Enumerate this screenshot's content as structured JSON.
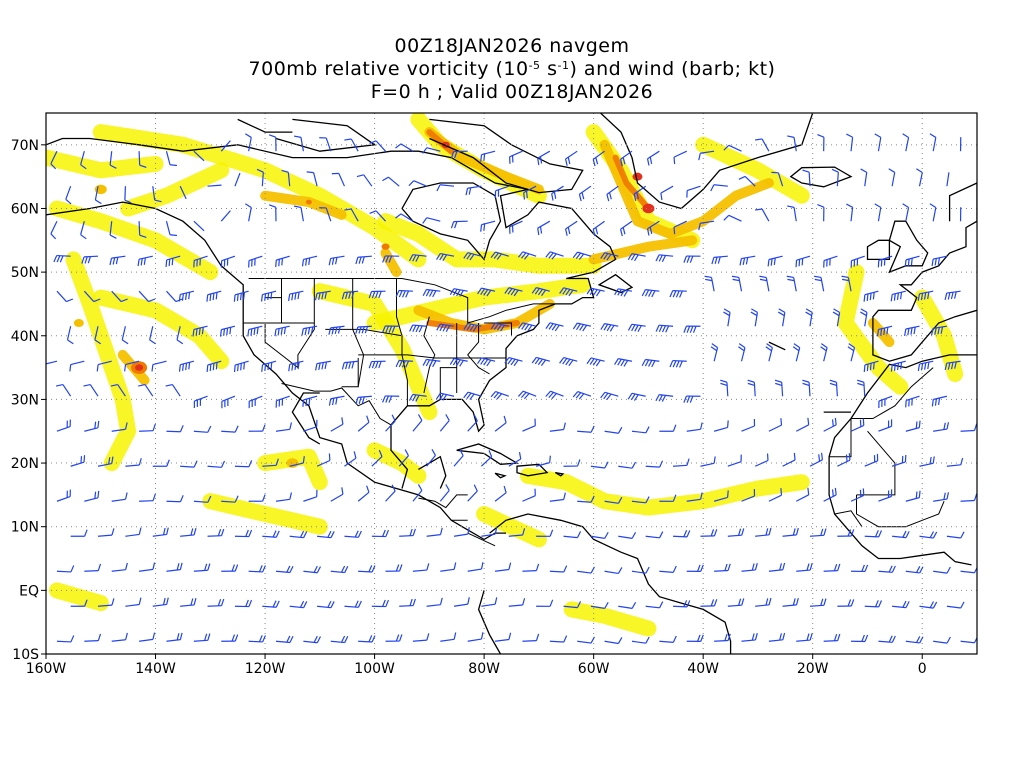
{
  "title": {
    "line1": "00Z18JAN2026 navgem",
    "line2_pre": "700mb relative vorticity (10",
    "line2_exp1": "-5",
    "line2_mid": " s",
    "line2_exp2": "-1",
    "line2_post": ") and wind (barb; kt)",
    "line3": "F=0 h ; Valid 00Z18JAN2026"
  },
  "map": {
    "projection": "cylindrical equidistant",
    "lon_range": [
      -160,
      10
    ],
    "lat_range": [
      -10,
      75
    ],
    "grid": "dotted",
    "x_ticks": [
      "160W",
      "140W",
      "120W",
      "100W",
      "80W",
      "60W",
      "40W",
      "20W",
      "0"
    ],
    "y_ticks": [
      "70N",
      "60N",
      "50N",
      "40N",
      "30N",
      "20N",
      "10N",
      "EQ",
      "10S"
    ],
    "colors": {
      "vorticity_low": "#f7f400",
      "vorticity_mid": "#f5c000",
      "vorticity_high": "#ef7a00",
      "vorticity_peak": "#e2301c",
      "barbs": "#2244ee",
      "coastlines": "#000000",
      "grid": "#888888"
    }
  }
}
